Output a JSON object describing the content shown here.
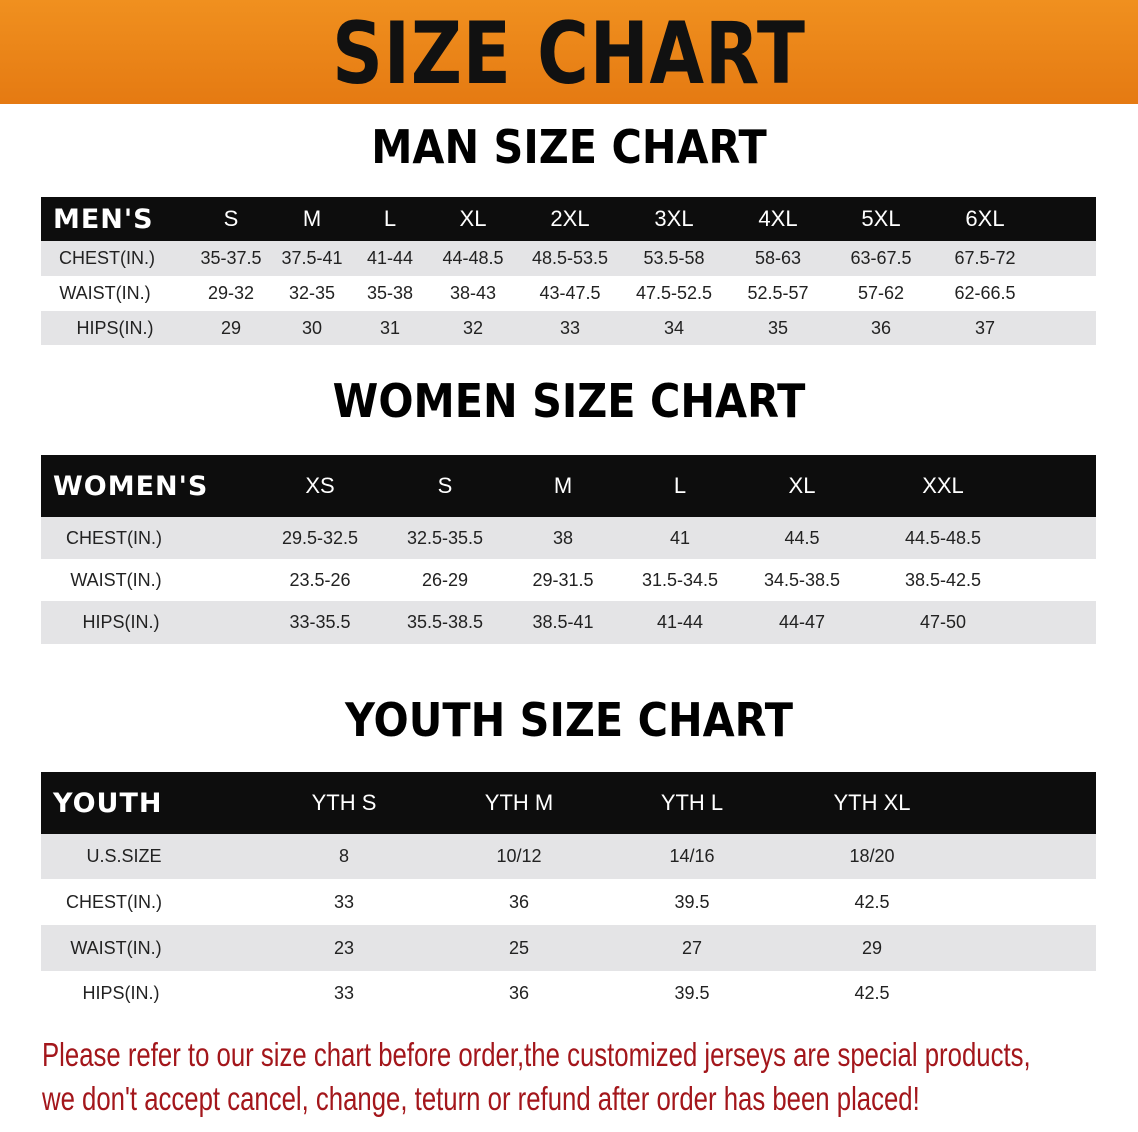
{
  "banner": {
    "title": "SIZE CHART",
    "color": "#e8841a"
  },
  "sections": [
    {
      "title": "MAN SIZE CHART",
      "header": "MEN'S",
      "sizes": [
        "S",
        "M",
        "L",
        "XL",
        "2XL",
        "3XL",
        "4XL",
        "5XL",
        "6XL"
      ],
      "rows": [
        {
          "label": "CHEST(IN.)",
          "values": [
            "35-37.5",
            "37.5-41",
            "41-44",
            "44-48.5",
            "48.5-53.5",
            "53.5-58",
            "58-63",
            "63-67.5",
            "67.5-72"
          ]
        },
        {
          "label": "WAIST(IN.)",
          "values": [
            "29-32",
            "32-35",
            "35-38",
            "38-43",
            "43-47.5",
            "47.5-52.5",
            "52.5-57",
            "57-62",
            "62-66.5"
          ]
        },
        {
          "label": "HIPS(IN.)",
          "values": [
            "29",
            "30",
            "31",
            "32",
            "33",
            "34",
            "35",
            "36",
            "37"
          ]
        }
      ]
    },
    {
      "title": "WOMEN SIZE CHART",
      "header": "WOMEN'S",
      "sizes": [
        "XS",
        "S",
        "M",
        "L",
        "XL",
        "XXL"
      ],
      "rows": [
        {
          "label": "CHEST(IN.)",
          "values": [
            "29.5-32.5",
            "32.5-35.5",
            "38",
            "41",
            "44.5",
            "44.5-48.5"
          ]
        },
        {
          "label": "WAIST(IN.)",
          "values": [
            "23.5-26",
            "26-29",
            "29-31.5",
            "31.5-34.5",
            "34.5-38.5",
            "38.5-42.5"
          ]
        },
        {
          "label": "HIPS(IN.)",
          "values": [
            "33-35.5",
            "35.5-38.5",
            "38.5-41",
            "41-44",
            "44-47",
            "47-50"
          ]
        }
      ]
    },
    {
      "title": "YOUTH SIZE CHART",
      "header": "YOUTH",
      "sizes": [
        "YTH S",
        "YTH M",
        "YTH L",
        "YTH XL"
      ],
      "rows": [
        {
          "label": "U.S.SIZE",
          "values": [
            "8",
            "10/12",
            "14/16",
            "18/20"
          ]
        },
        {
          "label": "CHEST(IN.)",
          "values": [
            "33",
            "36",
            "39.5",
            "42.5"
          ]
        },
        {
          "label": "WAIST(IN.)",
          "values": [
            "23",
            "25",
            "27",
            "29"
          ]
        },
        {
          "label": "HIPS(IN.)",
          "values": [
            "33",
            "36",
            "39.5",
            "42.5"
          ]
        }
      ]
    }
  ],
  "notice": {
    "lines": [
      "Please refer to our size chart before order,the customized jerseys are special products,",
      "we don't accept cancel, change, teturn or refund after order has been placed!"
    ],
    "color": "#a3161b"
  }
}
